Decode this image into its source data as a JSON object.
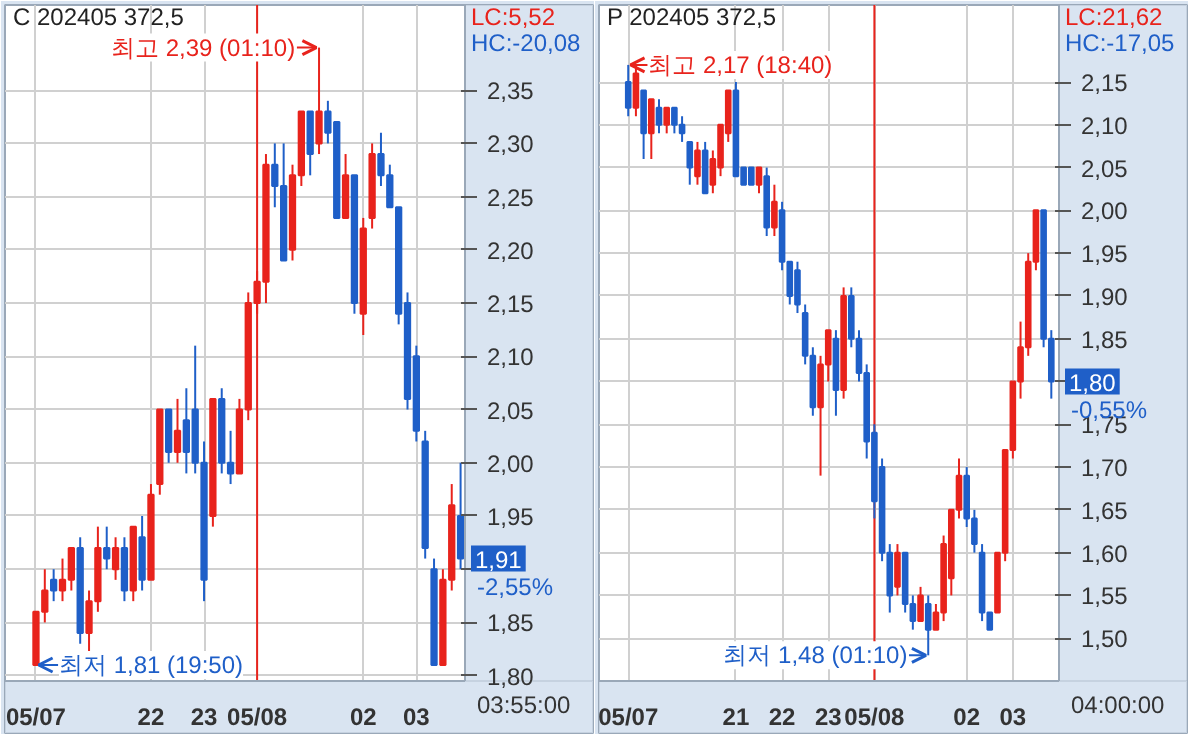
{
  "chart_data": [
    {
      "type": "candlestick",
      "title": "C 202405 372,5",
      "x": [
        "2024-05-07T19:50",
        "2024-05-07T20:00",
        "2024-05-07T20:10",
        "2024-05-07T20:20",
        "2024-05-07T20:30",
        "2024-05-07T20:40",
        "2024-05-07T20:50",
        "2024-05-07T21:00",
        "2024-05-07T21:10",
        "2024-05-07T21:20",
        "2024-05-07T21:30",
        "2024-05-07T21:40",
        "2024-05-07T21:50",
        "2024-05-07T22:00",
        "2024-05-07T22:10",
        "2024-05-07T22:20",
        "2024-05-07T22:30",
        "2024-05-07T22:40",
        "2024-05-07T22:50",
        "2024-05-07T23:00",
        "2024-05-07T23:10",
        "2024-05-07T23:20",
        "2024-05-07T23:30",
        "2024-05-07T23:40",
        "2024-05-07T23:50",
        "2024-05-08T00:00",
        "2024-05-08T00:10",
        "2024-05-08T00:20",
        "2024-05-08T00:30",
        "2024-05-08T00:40",
        "2024-05-08T00:50",
        "2024-05-08T01:00",
        "2024-05-08T01:10",
        "2024-05-08T01:20",
        "2024-05-08T01:30",
        "2024-05-08T01:40",
        "2024-05-08T01:50",
        "2024-05-08T02:00",
        "2024-05-08T02:10",
        "2024-05-08T02:20",
        "2024-05-08T02:30",
        "2024-05-08T02:40",
        "2024-05-08T02:50",
        "2024-05-08T03:00",
        "2024-05-08T03:10",
        "2024-05-08T03:20",
        "2024-05-08T03:30",
        "2024-05-08T03:40",
        "2024-05-08T03:50"
      ],
      "ohlc": [
        [
          1.81,
          1.86,
          1.81,
          1.86
        ],
        [
          1.86,
          1.9,
          1.85,
          1.88
        ],
        [
          1.89,
          1.9,
          1.87,
          1.88
        ],
        [
          1.88,
          1.91,
          1.87,
          1.89
        ],
        [
          1.89,
          1.92,
          1.88,
          1.92
        ],
        [
          1.92,
          1.93,
          1.83,
          1.84
        ],
        [
          1.84,
          1.88,
          1.82,
          1.87
        ],
        [
          1.87,
          1.94,
          1.86,
          1.92
        ],
        [
          1.92,
          1.94,
          1.9,
          1.91
        ],
        [
          1.9,
          1.93,
          1.89,
          1.92
        ],
        [
          1.92,
          1.93,
          1.87,
          1.88
        ],
        [
          1.88,
          1.94,
          1.87,
          1.94
        ],
        [
          1.93,
          1.95,
          1.88,
          1.89
        ],
        [
          1.89,
          1.98,
          1.89,
          1.97
        ],
        [
          1.98,
          2.05,
          1.97,
          2.05
        ],
        [
          2.05,
          2.05,
          2.0,
          2.01
        ],
        [
          2.01,
          2.06,
          2.0,
          2.03
        ],
        [
          2.04,
          2.07,
          1.99,
          2.01
        ],
        [
          2.05,
          2.11,
          1.99,
          2.0
        ],
        [
          2.0,
          2.02,
          1.87,
          1.89
        ],
        [
          1.95,
          2.06,
          1.94,
          2.06
        ],
        [
          2.06,
          2.07,
          1.99,
          2.0
        ],
        [
          2.0,
          2.03,
          1.98,
          1.99
        ],
        [
          1.99,
          2.06,
          1.99,
          2.05
        ],
        [
          2.05,
          2.16,
          2.04,
          2.15
        ],
        [
          2.15,
          2.18,
          2.14,
          2.17
        ],
        [
          2.17,
          2.29,
          2.15,
          2.28
        ],
        [
          2.28,
          2.3,
          2.24,
          2.26
        ],
        [
          2.26,
          2.3,
          2.19,
          2.19
        ],
        [
          2.2,
          2.28,
          2.19,
          2.27
        ],
        [
          2.27,
          2.33,
          2.26,
          2.33
        ],
        [
          2.33,
          2.33,
          2.27,
          2.29
        ],
        [
          2.3,
          2.39,
          2.29,
          2.33
        ],
        [
          2.33,
          2.34,
          2.3,
          2.31
        ],
        [
          2.32,
          2.32,
          2.23,
          2.23
        ],
        [
          2.23,
          2.29,
          2.23,
          2.27
        ],
        [
          2.27,
          2.27,
          2.14,
          2.15
        ],
        [
          2.14,
          2.23,
          2.12,
          2.22
        ],
        [
          2.23,
          2.3,
          2.22,
          2.29
        ],
        [
          2.29,
          2.31,
          2.26,
          2.27
        ],
        [
          2.27,
          2.28,
          2.24,
          2.24
        ],
        [
          2.24,
          2.24,
          2.13,
          2.14
        ],
        [
          2.15,
          2.16,
          2.05,
          2.06
        ],
        [
          2.1,
          2.11,
          2.02,
          2.03
        ],
        [
          2.02,
          2.03,
          1.91,
          1.92
        ],
        [
          1.9,
          1.91,
          1.81,
          1.81
        ],
        [
          1.81,
          1.9,
          1.81,
          1.89
        ],
        [
          1.89,
          1.98,
          1.88,
          1.96
        ],
        [
          1.95,
          2.0,
          1.9,
          1.91
        ]
      ],
      "colors": [
        "#e8231c",
        "#e8231c",
        "#1f5fc8",
        "#e8231c",
        "#e8231c",
        "#1f5fc8",
        "#e8231c",
        "#e8231c",
        "#1f5fc8",
        "#e8231c",
        "#1f5fc8",
        "#e8231c",
        "#1f5fc8",
        "#e8231c",
        "#e8231c",
        "#1f5fc8",
        "#e8231c",
        "#1f5fc8",
        "#1f5fc8",
        "#1f5fc8",
        "#e8231c",
        "#1f5fc8",
        "#1f5fc8",
        "#e8231c",
        "#e8231c",
        "#e8231c",
        "#e8231c",
        "#1f5fc8",
        "#1f5fc8",
        "#e8231c",
        "#e8231c",
        "#1f5fc8",
        "#e8231c",
        "#1f5fc8",
        "#1f5fc8",
        "#e8231c",
        "#1f5fc8",
        "#e8231c",
        "#e8231c",
        "#1f5fc8",
        "#1f5fc8",
        "#1f5fc8",
        "#1f5fc8",
        "#1f5fc8",
        "#1f5fc8",
        "#1f5fc8",
        "#e8231c",
        "#e8231c",
        "#1f5fc8"
      ],
      "xlim": [
        "2024-05-07T19:15",
        "2024-05-08T03:55"
      ],
      "xticks": [
        {
          "value": "2024-05-07T19:50",
          "label": "05/07"
        },
        {
          "value": "2024-05-07T22:00",
          "label": "22"
        },
        {
          "value": "2024-05-07T23:00",
          "label": "23"
        },
        {
          "value": "2024-05-08T00:00",
          "label": "05/08"
        },
        {
          "value": "2024-05-08T02:00",
          "label": "02"
        },
        {
          "value": "2024-05-08T03:00",
          "label": "03"
        }
      ],
      "ylim": [
        1.795,
        2.43
      ],
      "yticks": [
        {
          "value": 1.8,
          "label": "1,80"
        },
        {
          "value": 1.85,
          "label": "1,85"
        },
        {
          "value": 1.9,
          "label": null
        },
        {
          "value": 1.95,
          "label": "1,95"
        },
        {
          "value": 2.0,
          "label": "2,00"
        },
        {
          "value": 2.05,
          "label": "2,05"
        },
        {
          "value": 2.1,
          "label": "2,10"
        },
        {
          "value": 2.15,
          "label": "2,15"
        },
        {
          "value": 2.2,
          "label": "2,20"
        },
        {
          "value": 2.25,
          "label": "2,25"
        },
        {
          "value": 2.3,
          "label": "2,30"
        },
        {
          "value": 2.35,
          "label": "2,35"
        }
      ],
      "ref_lines": [
        {
          "axis": "x",
          "value": "2024-05-08T00:00",
          "color": "#e8231c"
        }
      ],
      "grid": true,
      "annotations": [
        "LC:5,52",
        "HC:-20,08",
        {
          "text": "최고 2,39 (01:10)",
          "x": "2024-05-08T01:10",
          "y": 2.39
        },
        {
          "text": "최저 1,81 (19:50)",
          "x": "2024-05-07T19:50",
          "y": 1.81
        },
        "1,91",
        "-2,55%",
        "03:55:00"
      ]
    },
    {
      "type": "candlestick",
      "title": "P 202405 372,5",
      "x": [
        "2024-05-07T18:40",
        "2024-05-07T18:50",
        "2024-05-07T19:00",
        "2024-05-07T19:10",
        "2024-05-07T19:20",
        "2024-05-07T19:30",
        "2024-05-07T19:40",
        "2024-05-07T19:50",
        "2024-05-07T20:00",
        "2024-05-07T20:10",
        "2024-05-07T20:20",
        "2024-05-07T20:30",
        "2024-05-07T20:40",
        "2024-05-07T20:50",
        "2024-05-07T21:00",
        "2024-05-07T21:10",
        "2024-05-07T21:20",
        "2024-05-07T21:30",
        "2024-05-07T21:40",
        "2024-05-07T21:50",
        "2024-05-07T22:00",
        "2024-05-07T22:10",
        "2024-05-07T22:20",
        "2024-05-07T22:30",
        "2024-05-07T22:40",
        "2024-05-07T22:50",
        "2024-05-07T23:00",
        "2024-05-07T23:10",
        "2024-05-07T23:20",
        "2024-05-07T23:30",
        "2024-05-07T23:40",
        "2024-05-07T23:50",
        "2024-05-08T00:00",
        "2024-05-08T00:10",
        "2024-05-08T00:20",
        "2024-05-08T00:30",
        "2024-05-08T00:40",
        "2024-05-08T00:50",
        "2024-05-08T01:00",
        "2024-05-08T01:10",
        "2024-05-08T01:20",
        "2024-05-08T01:30",
        "2024-05-08T01:40",
        "2024-05-08T01:50",
        "2024-05-08T02:00",
        "2024-05-08T02:10",
        "2024-05-08T02:20",
        "2024-05-08T02:30",
        "2024-05-08T02:40",
        "2024-05-08T02:50",
        "2024-05-08T03:00",
        "2024-05-08T03:10",
        "2024-05-08T03:20",
        "2024-05-08T03:30",
        "2024-05-08T03:40",
        "2024-05-08T03:50"
      ],
      "ohlc": [
        [
          2.15,
          2.17,
          2.11,
          2.12
        ],
        [
          2.12,
          2.17,
          2.11,
          2.16
        ],
        [
          2.14,
          2.14,
          2.06,
          2.09
        ],
        [
          2.09,
          2.13,
          2.06,
          2.13
        ],
        [
          2.12,
          2.13,
          2.09,
          2.1
        ],
        [
          2.1,
          2.12,
          2.09,
          2.12
        ],
        [
          2.12,
          2.12,
          2.09,
          2.1
        ],
        [
          2.1,
          2.11,
          2.08,
          2.09
        ],
        [
          2.08,
          2.08,
          2.03,
          2.05
        ],
        [
          2.04,
          2.08,
          2.03,
          2.07
        ],
        [
          2.07,
          2.08,
          2.02,
          2.02
        ],
        [
          2.03,
          2.07,
          2.02,
          2.06
        ],
        [
          2.05,
          2.1,
          2.04,
          2.1
        ],
        [
          2.09,
          2.14,
          2.08,
          2.14
        ],
        [
          2.14,
          2.15,
          2.04,
          2.04
        ],
        [
          2.05,
          2.05,
          2.03,
          2.03
        ],
        [
          2.05,
          2.05,
          2.03,
          2.03
        ],
        [
          2.03,
          2.05,
          2.02,
          2.05
        ],
        [
          2.04,
          2.05,
          1.97,
          1.98
        ],
        [
          1.98,
          2.03,
          1.97,
          2.01
        ],
        [
          2.0,
          2.01,
          1.93,
          1.94
        ],
        [
          1.94,
          1.94,
          1.89,
          1.9
        ],
        [
          1.93,
          1.94,
          1.88,
          1.89
        ],
        [
          1.88,
          1.89,
          1.82,
          1.83
        ],
        [
          1.83,
          1.84,
          1.76,
          1.77
        ],
        [
          1.77,
          1.83,
          1.69,
          1.82
        ],
        [
          1.82,
          1.86,
          1.8,
          1.86
        ],
        [
          1.85,
          1.86,
          1.76,
          1.79
        ],
        [
          1.79,
          1.91,
          1.78,
          1.9
        ],
        [
          1.9,
          1.91,
          1.84,
          1.85
        ],
        [
          1.85,
          1.86,
          1.8,
          1.81
        ],
        [
          1.81,
          1.82,
          1.71,
          1.73
        ],
        [
          1.74,
          1.75,
          1.64,
          1.66
        ],
        [
          1.7,
          1.71,
          1.59,
          1.6
        ],
        [
          1.6,
          1.61,
          1.53,
          1.55
        ],
        [
          1.56,
          1.61,
          1.55,
          1.6
        ],
        [
          1.6,
          1.6,
          1.53,
          1.54
        ],
        [
          1.54,
          1.55,
          1.51,
          1.52
        ],
        [
          1.52,
          1.56,
          1.52,
          1.55
        ],
        [
          1.54,
          1.55,
          1.48,
          1.51
        ],
        [
          1.51,
          1.54,
          1.51,
          1.53
        ],
        [
          1.53,
          1.62,
          1.52,
          1.61
        ],
        [
          1.57,
          1.65,
          1.55,
          1.65
        ],
        [
          1.65,
          1.71,
          1.64,
          1.69
        ],
        [
          1.69,
          1.7,
          1.63,
          1.64
        ],
        [
          1.64,
          1.65,
          1.6,
          1.61
        ],
        [
          1.6,
          1.61,
          1.52,
          1.53
        ],
        [
          1.53,
          1.53,
          1.51,
          1.51
        ],
        [
          1.53,
          1.6,
          1.53,
          1.6
        ],
        [
          1.6,
          1.72,
          1.59,
          1.72
        ],
        [
          1.72,
          1.8,
          1.71,
          1.8
        ],
        [
          1.8,
          1.87,
          1.78,
          1.84
        ],
        [
          1.84,
          1.95,
          1.83,
          1.94
        ],
        [
          1.94,
          2.0,
          1.93,
          2.0
        ],
        [
          2.0,
          2.0,
          1.84,
          1.85
        ],
        [
          1.85,
          1.86,
          1.78,
          1.8
        ]
      ],
      "colors": [
        "#1f5fc8",
        "#e8231c",
        "#1f5fc8",
        "#e8231c",
        "#1f5fc8",
        "#e8231c",
        "#1f5fc8",
        "#1f5fc8",
        "#1f5fc8",
        "#e8231c",
        "#1f5fc8",
        "#e8231c",
        "#e8231c",
        "#e8231c",
        "#1f5fc8",
        "#1f5fc8",
        "#1f5fc8",
        "#e8231c",
        "#1f5fc8",
        "#e8231c",
        "#1f5fc8",
        "#1f5fc8",
        "#1f5fc8",
        "#1f5fc8",
        "#1f5fc8",
        "#e8231c",
        "#e8231c",
        "#1f5fc8",
        "#e8231c",
        "#1f5fc8",
        "#1f5fc8",
        "#1f5fc8",
        "#1f5fc8",
        "#1f5fc8",
        "#1f5fc8",
        "#e8231c",
        "#1f5fc8",
        "#1f5fc8",
        "#e8231c",
        "#1f5fc8",
        "#e8231c",
        "#e8231c",
        "#e8231c",
        "#e8231c",
        "#1f5fc8",
        "#1f5fc8",
        "#1f5fc8",
        "#1f5fc8",
        "#e8231c",
        "#e8231c",
        "#e8231c",
        "#e8231c",
        "#e8231c",
        "#e8231c",
        "#1f5fc8",
        "#1f5fc8"
      ],
      "xlim": [
        "2024-05-07T18:02",
        "2024-05-08T04:00"
      ],
      "xticks": [
        {
          "value": "2024-05-07T18:40",
          "label": "05/07"
        },
        {
          "value": "2024-05-07T21:00",
          "label": "21"
        },
        {
          "value": "2024-05-07T22:00",
          "label": "22"
        },
        {
          "value": "2024-05-07T23:00",
          "label": "23"
        },
        {
          "value": "2024-05-08T00:00",
          "label": "05/08"
        },
        {
          "value": "2024-05-08T02:00",
          "label": "02"
        },
        {
          "value": "2024-05-08T03:00",
          "label": "03"
        }
      ],
      "ylim": [
        1.45,
        2.24
      ],
      "yticks": [
        {
          "value": 1.5,
          "label": "1,50"
        },
        {
          "value": 1.55,
          "label": "1,55"
        },
        {
          "value": 1.6,
          "label": "1,60"
        },
        {
          "value": 1.65,
          "label": "1,65"
        },
        {
          "value": 1.7,
          "label": "1,70"
        },
        {
          "value": 1.75,
          "label": "1,75"
        },
        {
          "value": 1.8,
          "label": null
        },
        {
          "value": 1.85,
          "label": "1,85"
        },
        {
          "value": 1.9,
          "label": "1,90"
        },
        {
          "value": 1.95,
          "label": "1,95"
        },
        {
          "value": 2.0,
          "label": "2,00"
        },
        {
          "value": 2.05,
          "label": "2,05"
        },
        {
          "value": 2.1,
          "label": "2,10"
        },
        {
          "value": 2.15,
          "label": "2,15"
        }
      ],
      "ref_lines": [
        {
          "axis": "x",
          "value": "2024-05-08T00:00",
          "color": "#e8231c"
        }
      ],
      "grid": true,
      "annotations": [
        "LC:21,62",
        "HC:-17,05",
        {
          "text": "최고 2,17 (18:40)",
          "x": "2024-05-07T18:40",
          "y": 2.17
        },
        {
          "text": "최저 1,48 (01:10)",
          "x": "2024-05-08T01:10",
          "y": 1.48
        },
        "1,80",
        "-0,55%",
        "04:00:00"
      ]
    }
  ]
}
